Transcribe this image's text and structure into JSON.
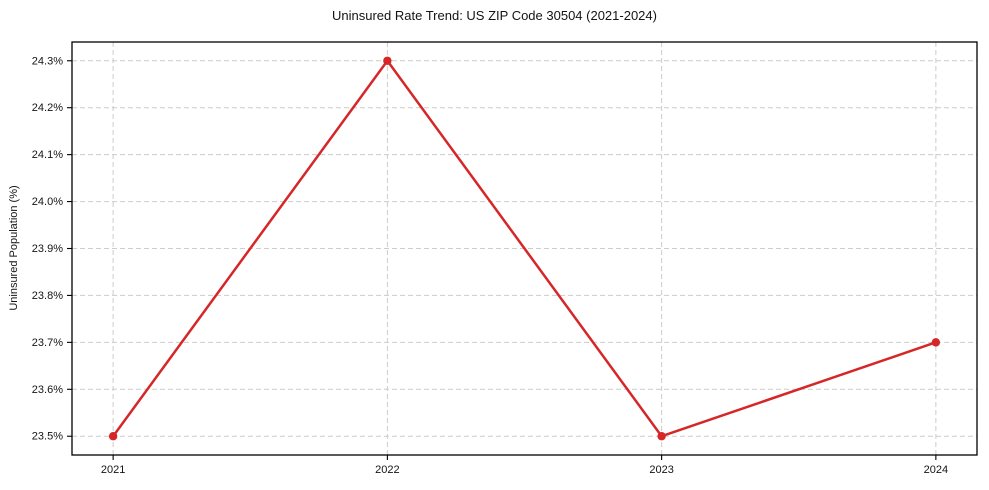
{
  "chart_data": {
    "type": "line",
    "title": "Uninsured Rate Trend: US ZIP Code 30504 (2021-2024)",
    "xlabel": "",
    "ylabel": "Uninsured Population (%)",
    "x": [
      2021,
      2022,
      2023,
      2024
    ],
    "x_tick_labels": [
      "2021",
      "2022",
      "2023",
      "2024"
    ],
    "values": [
      23.5,
      24.3,
      23.5,
      23.7
    ],
    "y_ticks": [
      23.5,
      23.6,
      23.7,
      23.8,
      23.9,
      24.0,
      24.1,
      24.2,
      24.3
    ],
    "y_tick_labels": [
      "23.5%",
      "23.6%",
      "23.7%",
      "23.8%",
      "23.9%",
      "24.0%",
      "24.1%",
      "24.2%",
      "24.3%"
    ],
    "xlim": [
      2020.85,
      2024.15
    ],
    "ylim": [
      23.46,
      24.34
    ],
    "grid": true,
    "legend": false,
    "line_color": "#d62728",
    "marker": "circle",
    "grid_color": "#cccccc",
    "axis_color": "#000000",
    "text_color": "#141414",
    "background_color": "#ffffff"
  }
}
